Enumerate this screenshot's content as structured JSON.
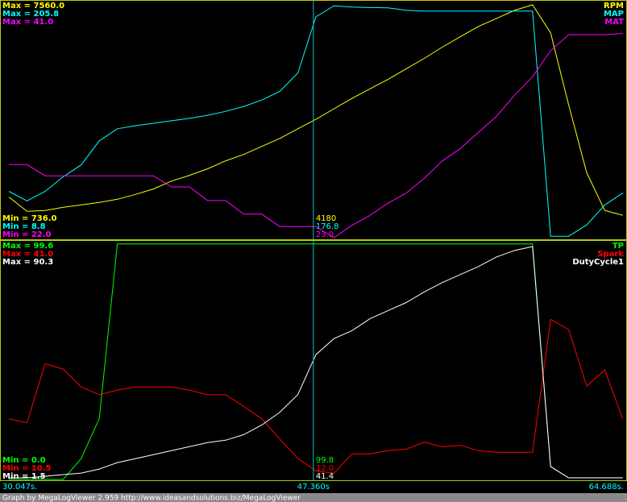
{
  "chart_data": [
    {
      "type": "line",
      "x": [
        30.5,
        31.5,
        32.5,
        33.5,
        34.5,
        35.5,
        36.5,
        37.5,
        38.5,
        39.5,
        40.5,
        41.5,
        42.5,
        43.5,
        44.5,
        45.5,
        46.5,
        47.5,
        48.5,
        49.5,
        50.5,
        51.5,
        52.5,
        53.5,
        54.5,
        55.5,
        56.5,
        57.5,
        58.5,
        59.5,
        60.5,
        61.5,
        62.5,
        63.5,
        64.5
      ],
      "xlim": [
        30.047,
        64.688
      ],
      "cursor": 47.36,
      "series": [
        {
          "name": "RPM",
          "color": "#ffff00",
          "ylim": [
            {
              "value": 736,
              "label": "Min = 736.0"
            },
            {
              "value": 7560,
              "label": "Max = 7560.0"
            }
          ],
          "cursor_value": 4180,
          "values": [
            1917,
            1500,
            1525,
            1617,
            1688,
            1760,
            1850,
            1990,
            2150,
            2380,
            2545,
            2735,
            2966,
            3150,
            3383,
            3615,
            3895,
            4170,
            4475,
            4776,
            5055,
            5330,
            5635,
            5935,
            6264,
            6564,
            6864,
            7096,
            7328,
            7490,
            6680,
            4590,
            2620,
            1525,
            1385
          ]
        },
        {
          "name": "MAP",
          "color": "#00ffff",
          "ylim": [
            {
              "value": 8.8,
              "label": "Min = 8.8"
            },
            {
              "value": 205.8,
              "label": "Max = 205.8"
            }
          ],
          "cursor_value": 176.8,
          "values": [
            47.6,
            39.6,
            47.6,
            59.8,
            69.8,
            89.9,
            100,
            102.6,
            104.6,
            106.7,
            108.7,
            111.3,
            114.6,
            118.7,
            124,
            131.4,
            146.7,
            193.8,
            203,
            201.9,
            201.5,
            201.3,
            199.2,
            198.5,
            198.5,
            198.5,
            198.5,
            198.5,
            198.5,
            198.5,
            10,
            10,
            19.5,
            36.2,
            46.3
          ]
        },
        {
          "name": "MAT",
          "color": "#ff00ff",
          "ylim": [
            {
              "value": 22,
              "label": "Min = 22.0"
            },
            {
              "value": 41,
              "label": "Max = 41.0"
            }
          ],
          "cursor_value": {
            "value": 23,
            "label": "23.0"
          },
          "values": [
            27.9,
            27.9,
            27,
            27,
            27,
            27,
            27,
            27,
            27,
            26.1,
            26.1,
            25,
            25,
            23.9,
            23.9,
            22.9,
            22.9,
            22.9,
            22,
            23,
            23.8,
            24.8,
            25.6,
            26.8,
            28.2,
            29.2,
            30.5,
            31.8,
            33.5,
            35,
            37.1,
            38.4,
            38.4,
            38.4,
            38.5
          ]
        }
      ]
    },
    {
      "type": "line",
      "x": [
        30.5,
        31.5,
        32.5,
        33.5,
        34.5,
        35.5,
        36.5,
        37.5,
        38.5,
        39.5,
        40.5,
        41.5,
        42.5,
        43.5,
        44.5,
        45.5,
        46.5,
        47.5,
        48.5,
        49.5,
        50.5,
        51.5,
        52.5,
        53.5,
        54.5,
        55.5,
        56.5,
        57.5,
        58.5,
        59.5,
        60.5,
        61.5,
        62.5,
        63.5,
        64.5
      ],
      "xlim": [
        {
          "value": 30.047,
          "label": "30.047s."
        },
        {
          "value": 64.688,
          "label": "64.688s."
        }
      ],
      "cursor": {
        "value": 47.36,
        "label": "47.360s"
      },
      "series": [
        {
          "name": "TP",
          "color": "#00ff00",
          "ylim": [
            {
              "value": 0,
              "label": "Min = 0.0"
            },
            {
              "value": 99.6,
              "label": "Max = 99.6"
            }
          ],
          "cursor_value": {
            "value": 99.8,
            "label": "99.8"
          },
          "values": [
            0,
            0,
            0,
            0,
            8.8,
            25.6,
            99,
            99,
            99,
            99,
            99,
            99,
            99,
            99,
            99,
            99,
            99,
            99,
            99,
            99,
            99,
            99,
            99,
            99,
            99,
            99,
            99,
            99,
            99,
            99,
            5.4,
            0.7,
            0.7,
            0.7,
            0.7
          ]
        },
        {
          "name": "Spark",
          "color": "#ff0000",
          "ylim": [
            {
              "value": 10.5,
              "label": "Min = 10.5"
            },
            {
              "value": 41,
              "label": "Max = 41.0"
            }
          ],
          "cursor_value": {
            "value": 12,
            "label": "12.0"
          },
          "values": [
            18.3,
            17.8,
            25.4,
            24.7,
            22.4,
            21.4,
            22,
            22.4,
            22.4,
            22.4,
            22,
            21.4,
            21.4,
            19.9,
            18.3,
            15.7,
            13.2,
            11.6,
            11.3,
            13.8,
            13.8,
            14.2,
            14.4,
            15.3,
            14.7,
            14.9,
            14.2,
            14,
            14,
            14,
            31.1,
            29.8,
            22.5,
            24.6,
            18.3
          ]
        },
        {
          "name": "DutyCycle1",
          "color": "#ffffff",
          "ylim": [
            {
              "value": 1.5,
              "label": "Min = 1.5"
            },
            {
              "value": 90.3,
              "label": "Max = 90.3"
            }
          ],
          "cursor_value": 41.4,
          "values": [
            2.1,
            2.1,
            2.7,
            3.3,
            3.9,
            5.4,
            7.8,
            9.3,
            10.8,
            12.3,
            13.8,
            15.3,
            16.2,
            18.3,
            21.9,
            26.7,
            33.3,
            48.3,
            54.3,
            57.3,
            61.8,
            64.8,
            67.8,
            71.8,
            75.3,
            78.3,
            81.3,
            84.9,
            87.3,
            88.8,
            6.3,
            2.1,
            2.1,
            2.1,
            2.1
          ]
        }
      ]
    }
  ],
  "footer": "Graph by MegaLogViewer 2.959 http://www.ideasandsolutions.biz/MegaLogViewer"
}
